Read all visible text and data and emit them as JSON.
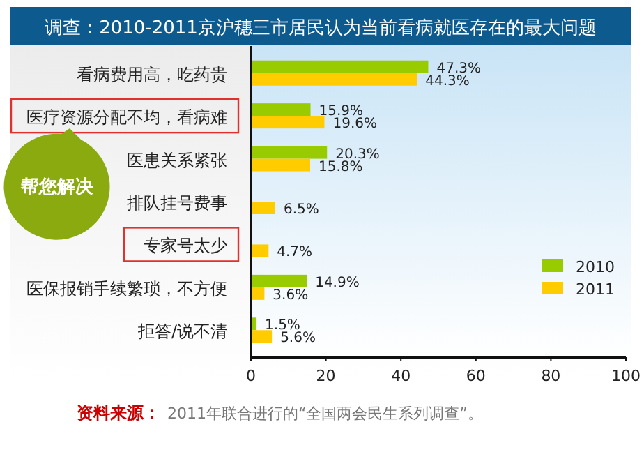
{
  "chart_data": {
    "type": "bar",
    "orientation": "horizontal",
    "title": "调查：2010-2011京沪穗三市居民认为当前看病就医存在的最大问题",
    "categories": [
      "看病费用高，吃药贵",
      "医疗资源分配不均，看病难",
      "医患关系紧张",
      "排队挂号费事",
      "专家号太少",
      "医保报销手续繁琐，不方便",
      "拒答/说不清"
    ],
    "series": [
      {
        "name": "2010",
        "color": "#99cc00",
        "values": [
          47.3,
          15.9,
          20.3,
          null,
          null,
          14.9,
          1.5
        ],
        "value_labels": [
          "47.3%",
          "15.9%",
          "20.3%",
          null,
          null,
          "14.9%",
          "1.5%"
        ]
      },
      {
        "name": "2011",
        "color": "#ffcc00",
        "values": [
          44.3,
          19.6,
          15.8,
          6.5,
          4.7,
          3.6,
          5.6
        ],
        "value_labels": [
          "44.3%",
          "19.6%",
          "15.8%",
          "6.5%",
          "4.7%",
          "3.6%",
          "5.6%"
        ]
      }
    ],
    "xlim": [
      0,
      100
    ],
    "xticks": [
      0,
      20,
      40,
      60,
      80,
      100
    ],
    "grid": false,
    "legend": "bottom right",
    "annotations": [
      "帮您解决",
      "资料来源：",
      "2011年联合进行的“全国两会民生系列调查”。"
    ]
  }
}
